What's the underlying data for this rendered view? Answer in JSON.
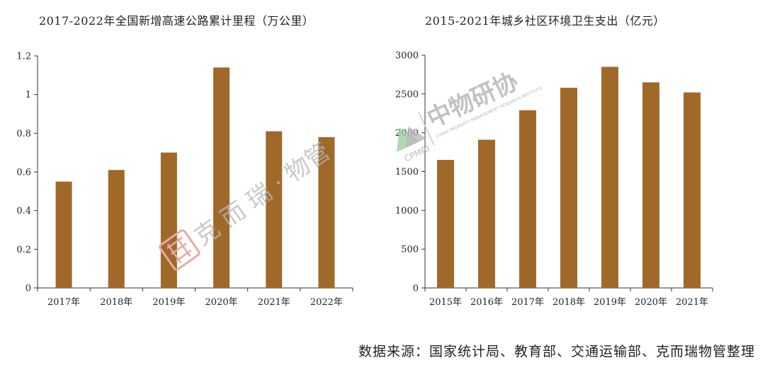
{
  "colors": {
    "bar": "#a0692a",
    "axis": "#333333",
    "watermark_red": "#e9a9a4",
    "watermark_gray": "#b8b8b8",
    "watermark_green": "#9fcf9f"
  },
  "chart_data": [
    {
      "type": "bar",
      "title": "2017-2022年全国新增高速公路累计里程（万公里）",
      "categories": [
        "2017年",
        "2018年",
        "2019年",
        "2020年",
        "2021年",
        "2022年"
      ],
      "values": [
        0.55,
        0.61,
        0.7,
        1.14,
        0.81,
        0.78
      ],
      "ylim": [
        0,
        1.2
      ],
      "yticks": [
        "0",
        "0.2",
        "0.4",
        "0.6",
        "0.8",
        "1",
        "1.2"
      ],
      "grid": false
    },
    {
      "type": "bar",
      "title": "2015-2021年城乡社区环境卫生支出（亿元）",
      "categories": [
        "2015年",
        "2016年",
        "2017年",
        "2018年",
        "2019年",
        "2020年",
        "2021年"
      ],
      "values": [
        1650,
        1910,
        2290,
        2580,
        2850,
        2650,
        2520
      ],
      "ylim": [
        0,
        3000
      ],
      "yticks": [
        "0",
        "500",
        "1000",
        "1500",
        "2000",
        "2500",
        "3000"
      ],
      "grid": false
    }
  ],
  "watermarks": {
    "left_text": "克 而 瑞 · 物管",
    "right_text": "中物研协",
    "right_subtext": "CHINA PROPERTY MANAGEMENT RESEARCH INSTITUTE",
    "right_abbr": "CPMRI"
  },
  "source": "数据来源：国家统计局、教育部、交通运输部、克而瑞物管整理"
}
